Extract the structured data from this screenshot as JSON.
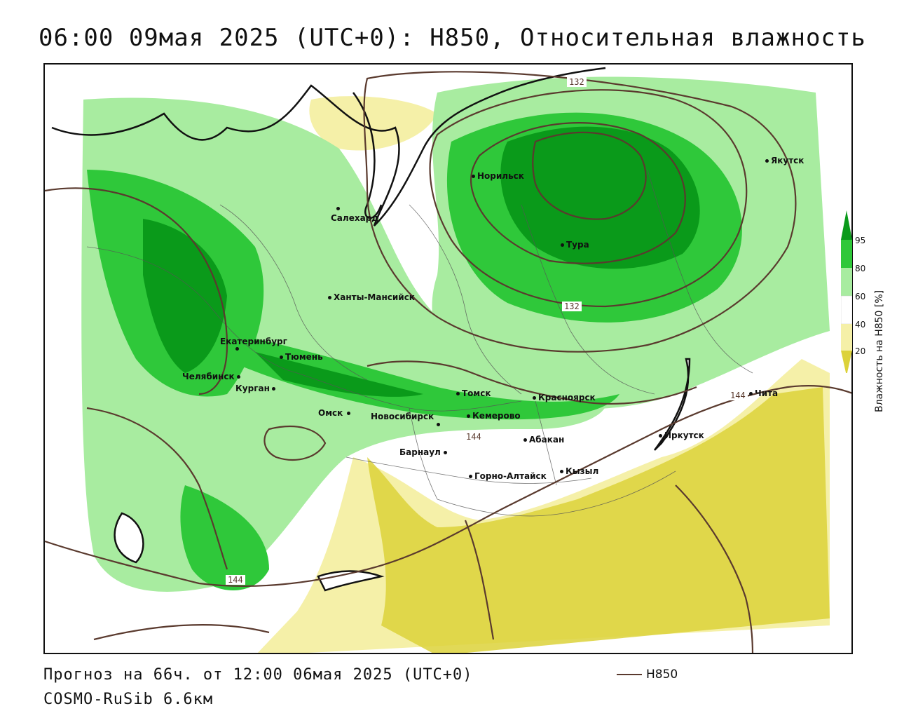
{
  "header": {
    "title": "06:00 09мая 2025 (UTC+0): H850, Относительная влажность"
  },
  "map": {
    "cities": [
      {
        "name": "Норильск"
      },
      {
        "name": "Якутск"
      },
      {
        "name": "Салехард"
      },
      {
        "name": "Тура"
      },
      {
        "name": "Ханты-Мансийск"
      },
      {
        "name": "Екатеринбург"
      },
      {
        "name": "Тюмень"
      },
      {
        "name": "Челябинск"
      },
      {
        "name": "Курган"
      },
      {
        "name": "Омск"
      },
      {
        "name": "Новосибирск"
      },
      {
        "name": "Томск"
      },
      {
        "name": "Кемерово"
      },
      {
        "name": "Красноярск"
      },
      {
        "name": "Барнаул"
      },
      {
        "name": "Абакан"
      },
      {
        "name": "Горно-Алтайск"
      },
      {
        "name": "Кызыл"
      },
      {
        "name": "Иркутск"
      },
      {
        "name": "Чита"
      }
    ],
    "contour_labels": [
      "132",
      "132",
      "144",
      "144",
      "144"
    ],
    "colors": {
      "green_dark": "#0a9a1a",
      "green_mid": "#2fc83a",
      "green_light": "#a8eca0",
      "white": "#ffffff",
      "yellow_light": "#f5f0a8",
      "yellow_dark": "#dcd23a",
      "contour": "#5a3a2e"
    }
  },
  "legend": {
    "title": "Влажность на H850 [%]",
    "ticks": [
      "95",
      "80",
      "60",
      "40",
      "20"
    ]
  },
  "footer": {
    "forecast": "Прогноз на 66ч. от 12:00 06мая 2025 (UTC+0)",
    "model": "COSMO-RuSib 6.6км",
    "contour_key_label": "H850"
  }
}
